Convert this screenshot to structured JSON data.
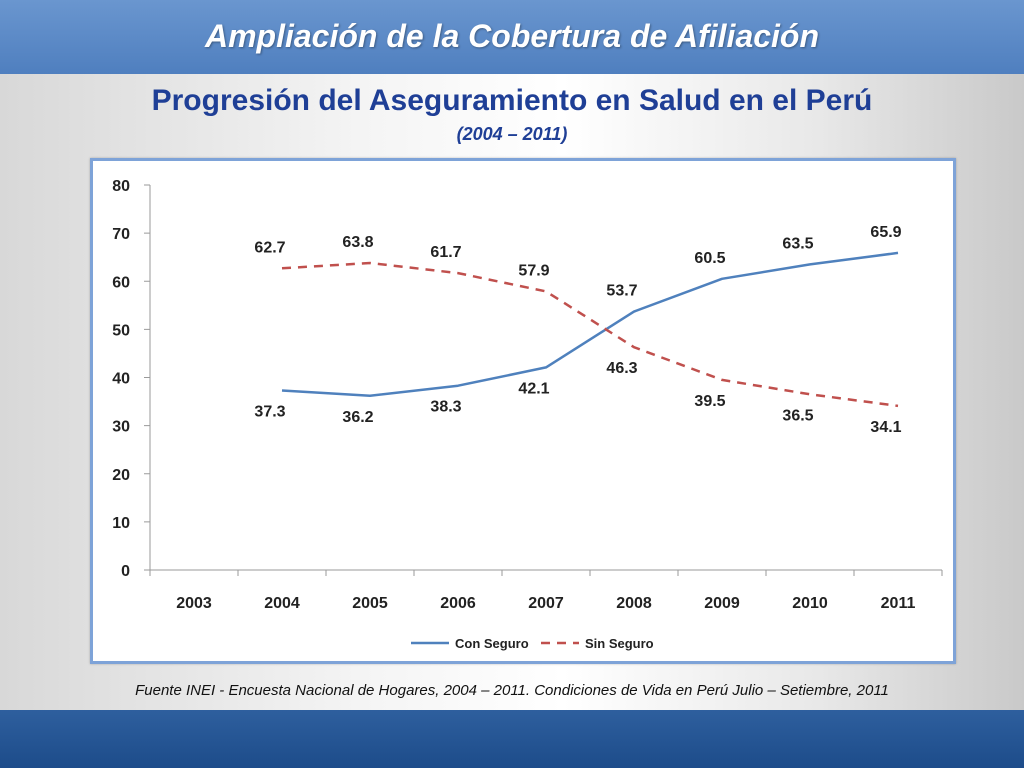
{
  "header": {
    "title": "Ampliación de la Cobertura de Afiliación"
  },
  "main": {
    "subtitle": "Progresión del Aseguramiento en Salud en el Perú",
    "period": "(2004 – 2011)"
  },
  "footer": {
    "source": "Fuente INEI - Encuesta Nacional de Hogares, 2004 – 2011. Condiciones de Vida en Perú Julio – Setiembre, 2011"
  },
  "colors": {
    "header_bar": "#4f7fbf",
    "title_text": "#1f3f96",
    "con_seguro": "#4f81bd",
    "sin_seguro": "#c0504d",
    "footer_bar": "#1d4c8a"
  },
  "chart_data": {
    "type": "line",
    "title": "",
    "xlabel": "",
    "ylabel": "",
    "categories": [
      "2003",
      "2004",
      "2005",
      "2006",
      "2007",
      "2008",
      "2009",
      "2010",
      "2011"
    ],
    "ylim": [
      0,
      80
    ],
    "yticks": [
      0,
      10,
      20,
      30,
      40,
      50,
      60,
      70,
      80
    ],
    "grid": false,
    "legend_position": "bottom",
    "series": [
      {
        "name": "Con Seguro",
        "style": "solid",
        "color": "#4f81bd",
        "values": [
          null,
          37.3,
          36.2,
          38.3,
          42.1,
          53.7,
          60.5,
          63.5,
          65.9
        ],
        "labels": [
          "",
          "37.3",
          "36.2",
          "38.3",
          "42.1",
          "53.7",
          "60.5",
          "63.5",
          "65.9"
        ]
      },
      {
        "name": "Sin Seguro",
        "style": "dashed",
        "color": "#c0504d",
        "values": [
          null,
          62.7,
          63.8,
          61.7,
          57.9,
          46.3,
          39.5,
          36.5,
          34.1
        ],
        "labels": [
          "",
          "62.7",
          "63.8",
          "61.7",
          "57.9",
          "46.3",
          "39.5",
          "36.5",
          "34.1"
        ]
      }
    ]
  }
}
